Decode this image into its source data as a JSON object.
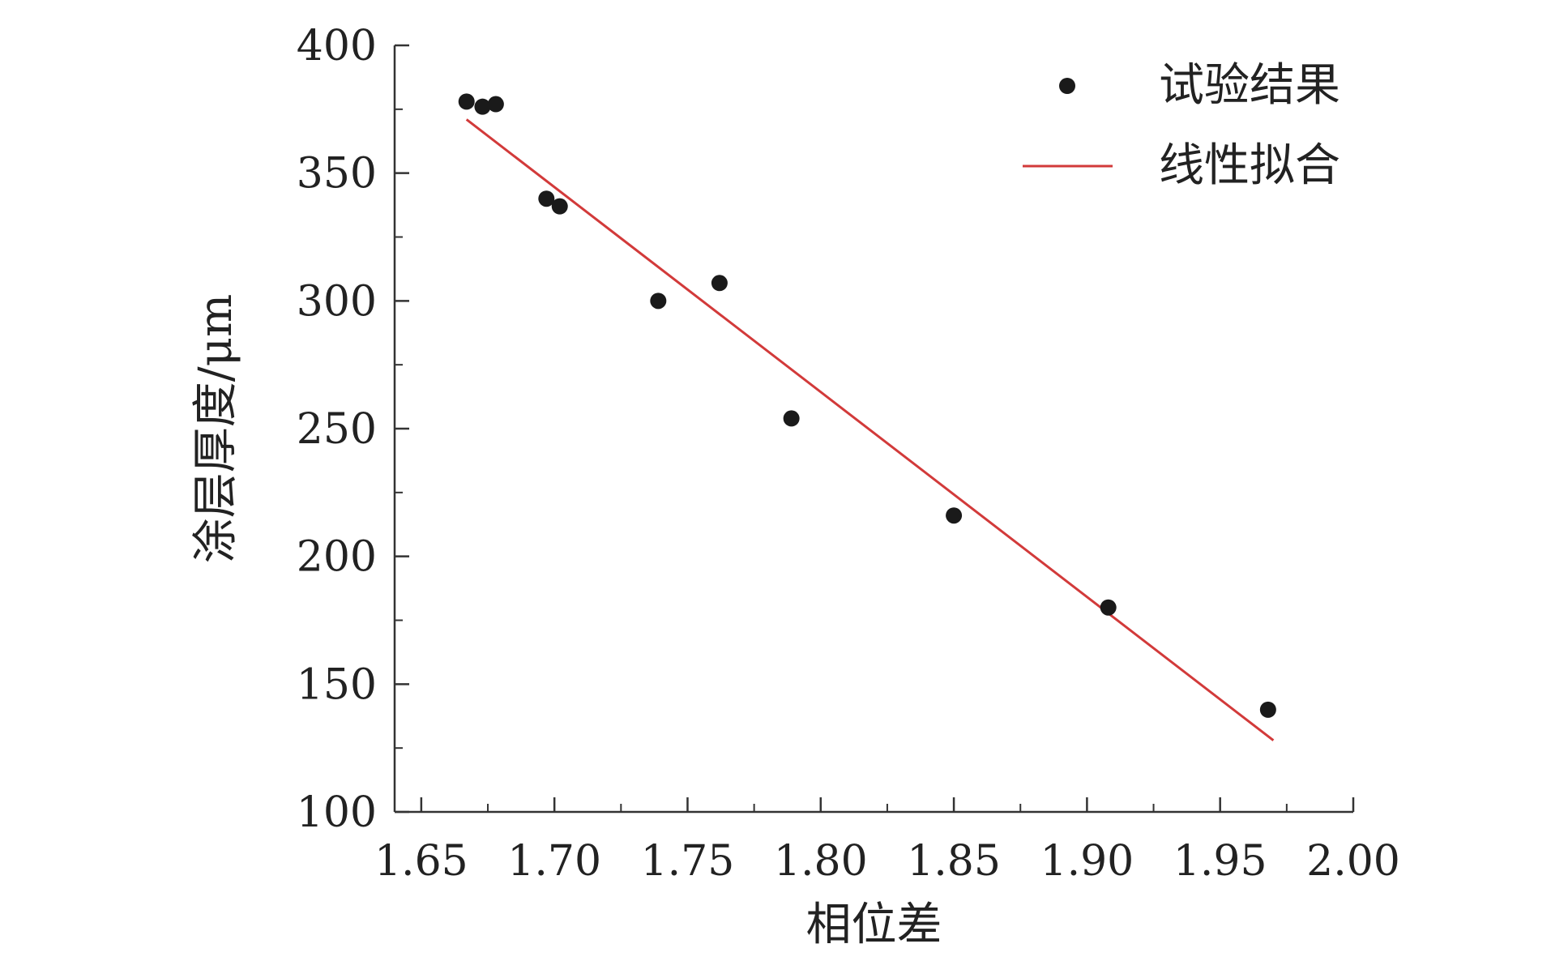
{
  "chart_data": {
    "type": "scatter",
    "title": "",
    "xlabel": "相位差",
    "ylabel": "涂层厚度/μm",
    "xlim": [
      1.64,
      2.0
    ],
    "ylim": [
      100,
      400
    ],
    "xticks": [
      1.65,
      1.7,
      1.75,
      1.8,
      1.85,
      1.9,
      1.95,
      2.0
    ],
    "xtick_labels": [
      "1.65",
      "1.70",
      "1.75",
      "1.80",
      "1.85",
      "1.90",
      "1.95",
      "2.00"
    ],
    "yticks": [
      100,
      150,
      200,
      250,
      300,
      350,
      400
    ],
    "ytick_labels": [
      "100",
      "150",
      "200",
      "250",
      "300",
      "350",
      "400"
    ],
    "grid": false,
    "legend_position": "top-right",
    "series": [
      {
        "name": "试验结果",
        "kind": "scatter",
        "color": "#1a1a1a",
        "points": [
          {
            "x": 1.667,
            "y": 378
          },
          {
            "x": 1.673,
            "y": 376
          },
          {
            "x": 1.678,
            "y": 377
          },
          {
            "x": 1.697,
            "y": 340
          },
          {
            "x": 1.702,
            "y": 337
          },
          {
            "x": 1.739,
            "y": 300
          },
          {
            "x": 1.762,
            "y": 307
          },
          {
            "x": 1.789,
            "y": 254
          },
          {
            "x": 1.85,
            "y": 216
          },
          {
            "x": 1.908,
            "y": 180
          },
          {
            "x": 1.968,
            "y": 140
          }
        ]
      },
      {
        "name": "线性拟合",
        "kind": "line",
        "color": "#d23a3a",
        "points": [
          {
            "x": 1.667,
            "y": 371
          },
          {
            "x": 1.97,
            "y": 128
          }
        ]
      }
    ]
  }
}
